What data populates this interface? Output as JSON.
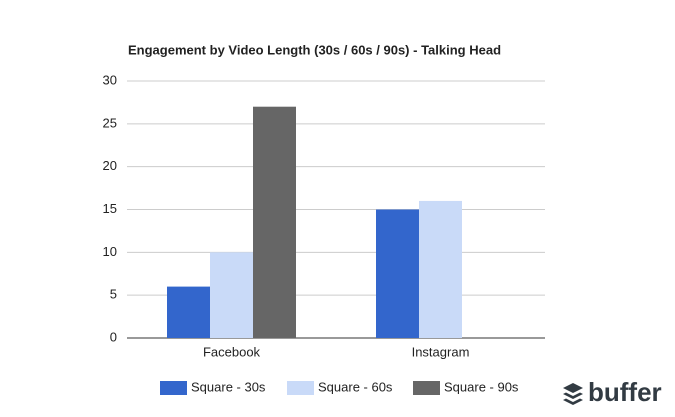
{
  "chart_data": {
    "type": "bar",
    "title": "Engagement by Video Length (30s / 60s / 90s) - Talking Head",
    "categories": [
      "Facebook",
      "Instagram"
    ],
    "series": [
      {
        "name": "Square - 30s",
        "color": "#3366cc",
        "values": [
          6,
          15
        ]
      },
      {
        "name": "Square - 60s",
        "color": "#c9daf8",
        "values": [
          10,
          16
        ]
      },
      {
        "name": "Square - 90s",
        "color": "#666666",
        "values": [
          27,
          null
        ]
      }
    ],
    "ylim": [
      0,
      30
    ],
    "yticks": [
      0,
      5,
      10,
      15,
      20,
      25,
      30
    ],
    "grid": true,
    "legend": "bottom"
  },
  "brand": "buffer"
}
